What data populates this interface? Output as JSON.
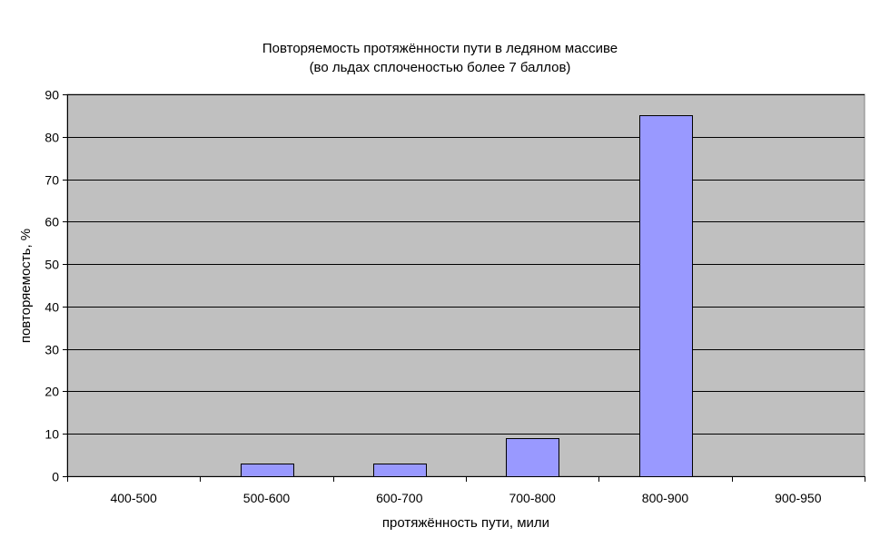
{
  "chart_data": {
    "type": "bar",
    "title_lines": [
      "Повторяемость протяжённости пути в ледяном массиве",
      "(во льдах сплоченостью более 7 баллов)"
    ],
    "xlabel": "протяжённость пути, мили",
    "ylabel": "повторяемость, %",
    "categories": [
      "400-500",
      "500-600",
      "600-700",
      "700-800",
      "800-900",
      "900-950"
    ],
    "values": [
      0,
      3,
      3,
      9,
      85,
      0
    ],
    "ylim": [
      0,
      90
    ],
    "yticks": [
      0,
      10,
      20,
      30,
      40,
      50,
      60,
      70,
      80,
      90
    ],
    "grid": true,
    "legend": "none",
    "colors": {
      "bar": "#9999ff",
      "bar_stroke": "#000000",
      "plot_background": "#c0c0c0",
      "gridline": "#000000"
    }
  }
}
